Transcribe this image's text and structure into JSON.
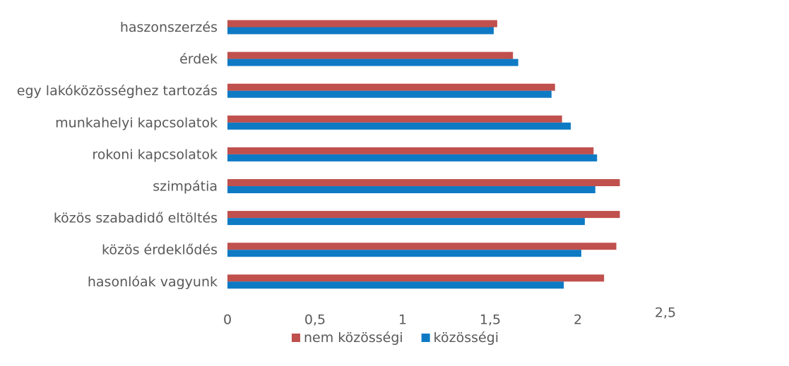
{
  "chart_data": {
    "type": "bar",
    "orientation": "horizontal",
    "categories": [
      "haszonszerzés",
      "érdek",
      "egy lakóközösséghez tartozás",
      "munkahelyi kapcsolatok",
      "rokoni kapcsolatok",
      "szimpátia",
      "közös szabadidő eltöltés",
      "közös érdeklődés",
      "hasonlóak vagyunk"
    ],
    "series": [
      {
        "name": "nem közösségi",
        "color": "#c0504d",
        "values": [
          1.54,
          1.63,
          1.87,
          1.91,
          2.09,
          2.24,
          2.24,
          2.22,
          2.15
        ]
      },
      {
        "name": "közösségi",
        "color": "#0e7ac4",
        "values": [
          1.52,
          1.66,
          1.85,
          1.96,
          2.11,
          2.1,
          2.04,
          2.02,
          1.92
        ]
      }
    ],
    "xlim": [
      0,
      2.5
    ],
    "x_ticks": [
      "0",
      "0,5",
      "1",
      "1,5",
      "2",
      "2,5"
    ],
    "grid": false,
    "legend_position": "bottom"
  }
}
